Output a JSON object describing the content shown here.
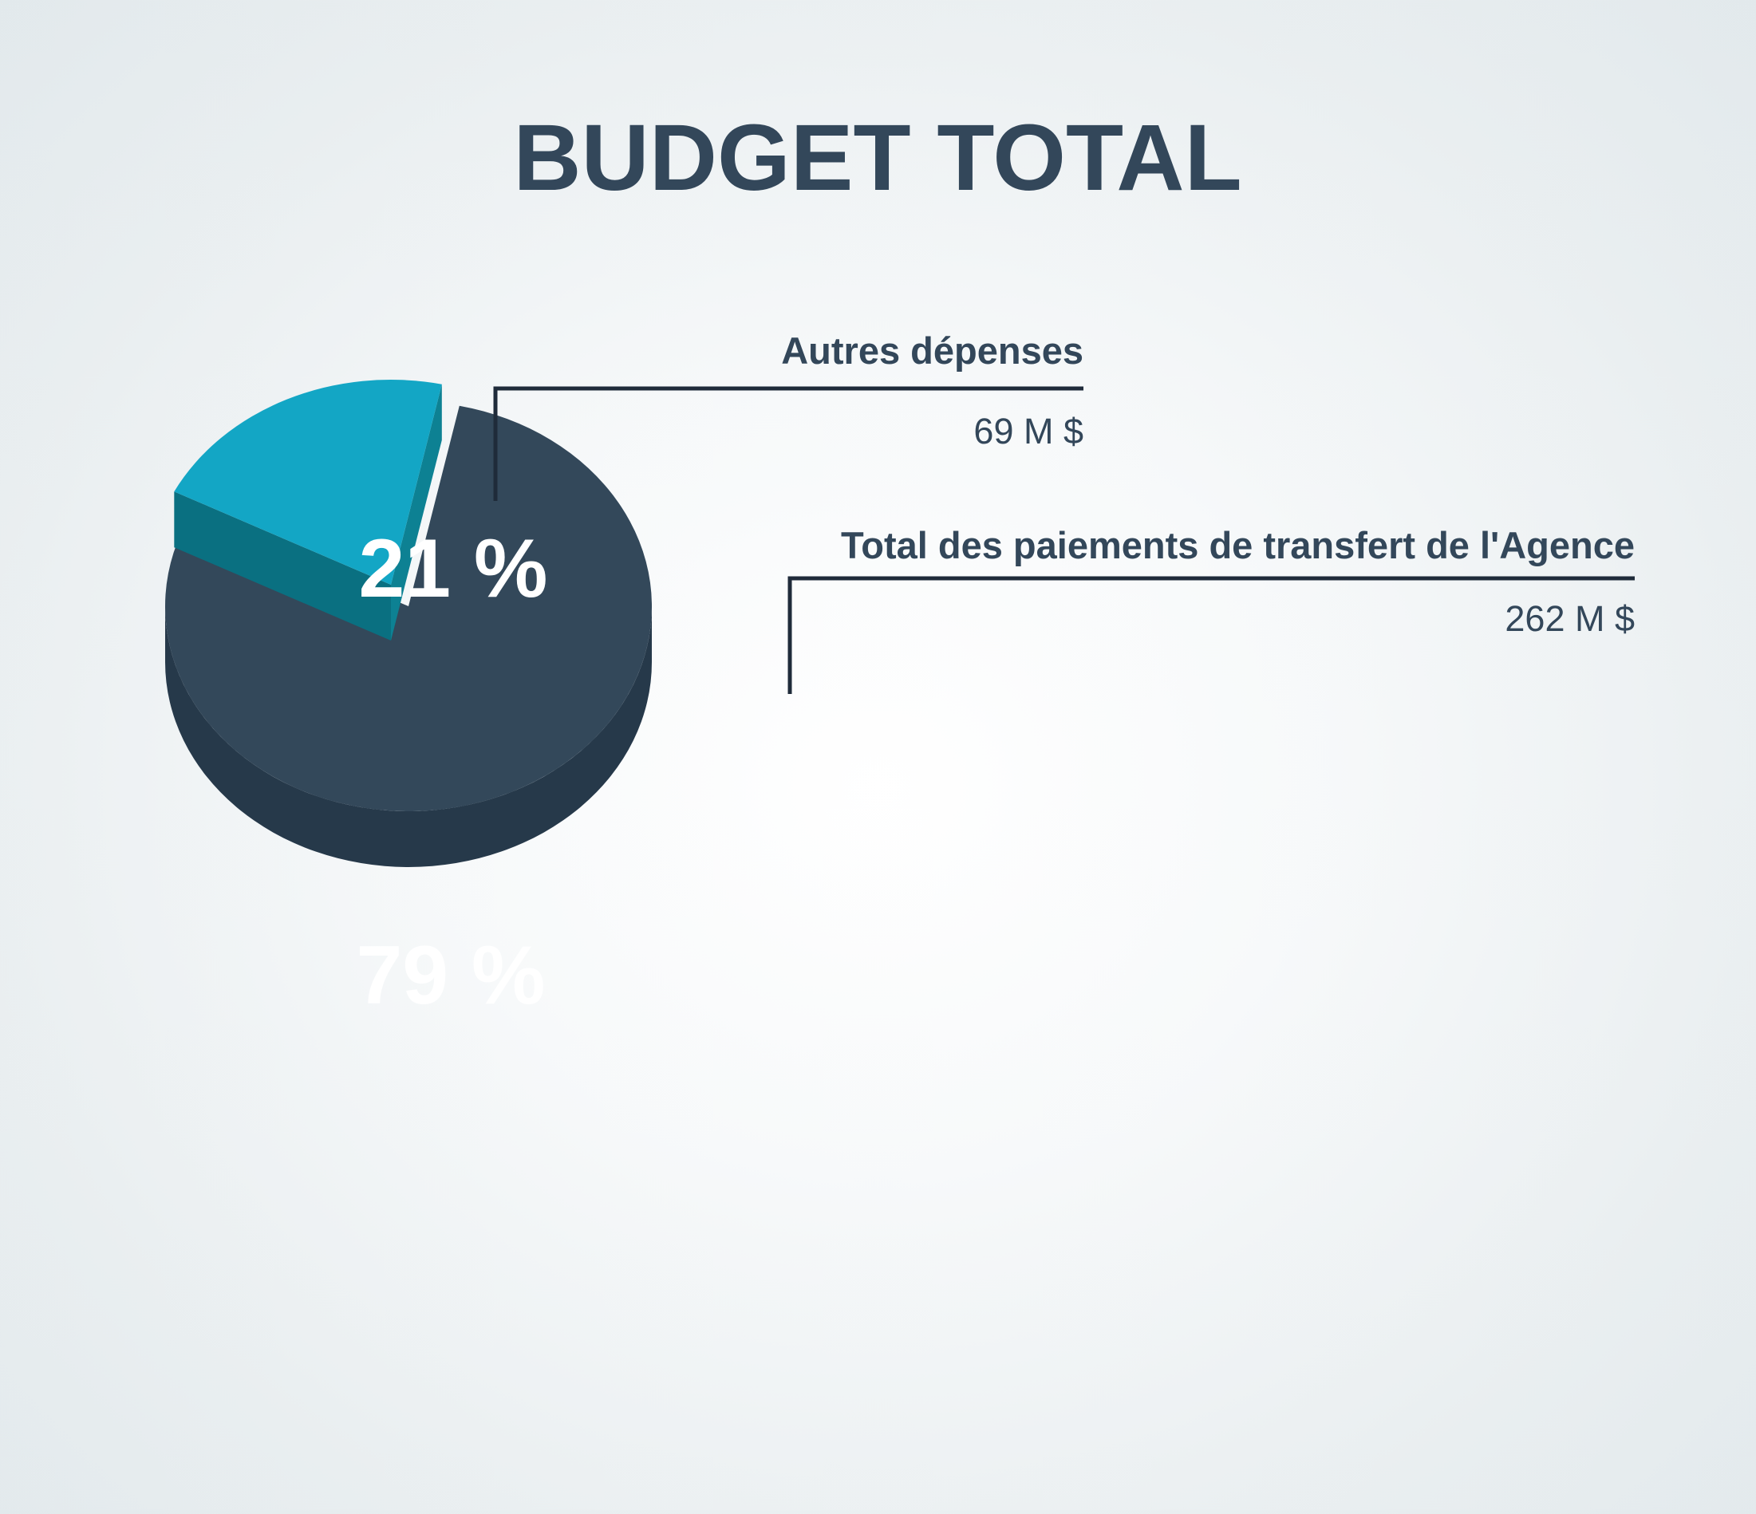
{
  "chart_data": {
    "type": "pie",
    "title": "BUDGET TOTAL",
    "series": [
      {
        "label": "Total des paiements de transfert de l'Agence",
        "value_text": "262 M $",
        "value": 262,
        "percent": 79,
        "percent_label": "79 %",
        "color": "#33485a",
        "side_color": "#26394a"
      },
      {
        "label": "Autres dépenses",
        "value_text": "69 M $",
        "value": 69,
        "percent": 21,
        "percent_label": "21 %",
        "color": "#13a6c5",
        "side_color": "#0a7081",
        "exploded": true
      }
    ],
    "unit": "M $",
    "legend": "callouts-right"
  }
}
